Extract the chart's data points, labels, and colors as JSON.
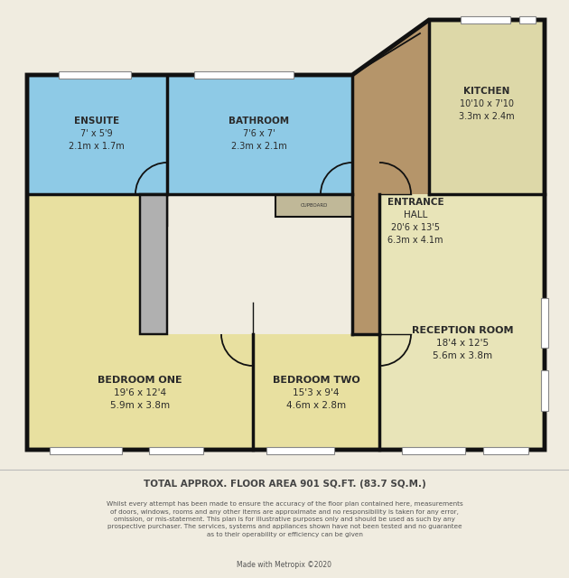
{
  "bg_color": "#f0ece0",
  "wall_color": "#111111",
  "room_yellow": "#e8e0a0",
  "room_blue": "#8ecae6",
  "room_tan": "#b5956a",
  "room_kitchen": "#ddd8a8",
  "room_reception": "#e8e4b8",
  "title": "TOTAL APPROX. FLOOR AREA 901 SQ.FT. (83.7 SQ.M.)",
  "disclaimer_line1": "Whilst every attempt has been made to ensure the accuracy of the floor plan contained here, measurements",
  "disclaimer_line2": "of doors, windows, rooms and any other items are approximate and no responsibility is taken for any error,",
  "disclaimer_line3": "omission, or mis-statement. This plan is for illustrative purposes only and should be used as such by any",
  "disclaimer_line4": "prospective purchaser. The services, systems and appliances shown have not been tested and no guarantee",
  "disclaimer_line5": "as to their operability or efficiency can be given",
  "credit": "Made with Metropix ©2020",
  "note_font": 6.0,
  "wall_lw": 2.5
}
